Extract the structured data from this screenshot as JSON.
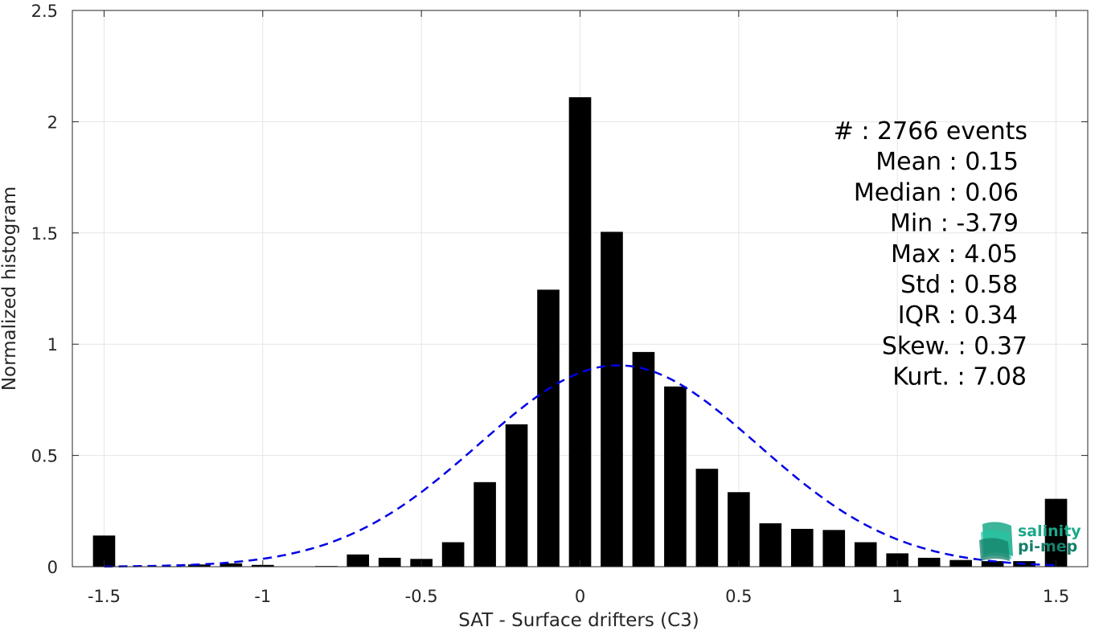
{
  "chart_data": {
    "type": "bar",
    "xlabel": "SAT - Surface drifters (C3)",
    "ylabel": "Normalized histogram",
    "xlim": [
      -1.6,
      1.6
    ],
    "ylim": [
      0,
      2.5
    ],
    "xticks": [
      -1.5,
      -1,
      -0.5,
      0,
      0.5,
      1,
      1.5
    ],
    "xtick_labels": [
      "-1.5",
      "-1",
      "-0.5",
      "0",
      "0.5",
      "1",
      "1.5"
    ],
    "yticks": [
      0,
      0.5,
      1,
      1.5,
      2,
      2.5
    ],
    "ytick_labels": [
      "0",
      "0.5",
      "1",
      "1.5",
      "2",
      "2.5"
    ],
    "grid": true,
    "bin_width": 0.1,
    "bar_color": "#000000",
    "bins": [
      {
        "x": -1.5,
        "y": 0.14
      },
      {
        "x": -1.4,
        "y": 0.0
      },
      {
        "x": -1.3,
        "y": 0.0
      },
      {
        "x": -1.2,
        "y": 0.01
      },
      {
        "x": -1.1,
        "y": 0.015
      },
      {
        "x": -1.0,
        "y": 0.008
      },
      {
        "x": -0.9,
        "y": 0.0
      },
      {
        "x": -0.8,
        "y": 0.003
      },
      {
        "x": -0.7,
        "y": 0.055
      },
      {
        "x": -0.6,
        "y": 0.04
      },
      {
        "x": -0.5,
        "y": 0.035
      },
      {
        "x": -0.4,
        "y": 0.11
      },
      {
        "x": -0.3,
        "y": 0.38
      },
      {
        "x": -0.2,
        "y": 0.64
      },
      {
        "x": -0.1,
        "y": 1.245
      },
      {
        "x": 0.0,
        "y": 2.11
      },
      {
        "x": 0.1,
        "y": 1.505
      },
      {
        "x": 0.2,
        "y": 0.965
      },
      {
        "x": 0.3,
        "y": 0.81
      },
      {
        "x": 0.4,
        "y": 0.44
      },
      {
        "x": 0.5,
        "y": 0.335
      },
      {
        "x": 0.6,
        "y": 0.195
      },
      {
        "x": 0.7,
        "y": 0.17
      },
      {
        "x": 0.8,
        "y": 0.165
      },
      {
        "x": 0.9,
        "y": 0.11
      },
      {
        "x": 1.0,
        "y": 0.06
      },
      {
        "x": 1.1,
        "y": 0.04
      },
      {
        "x": 1.2,
        "y": 0.03
      },
      {
        "x": 1.3,
        "y": 0.025
      },
      {
        "x": 1.4,
        "y": 0.025
      },
      {
        "x": 1.5,
        "y": 0.305
      }
    ],
    "fit_curve": {
      "type": "gaussian",
      "mean": 0.12,
      "std": 0.44,
      "peak": 0.905,
      "x_range": [
        -1.5,
        1.5
      ],
      "color": "#0000e6",
      "style": "dashed"
    },
    "stats": [
      "#  : 2766 events",
      "Mean : 0.15",
      "Median : 0.06",
      "Min : -3.79",
      "Max : 4.05",
      "Std : 0.58",
      "IQR : 0.34",
      "Skew. : 0.37",
      "Kurt. : 7.08"
    ]
  },
  "logo": {
    "line1": "salinity",
    "line2": "pi-mep",
    "color": "#1aa88a"
  }
}
